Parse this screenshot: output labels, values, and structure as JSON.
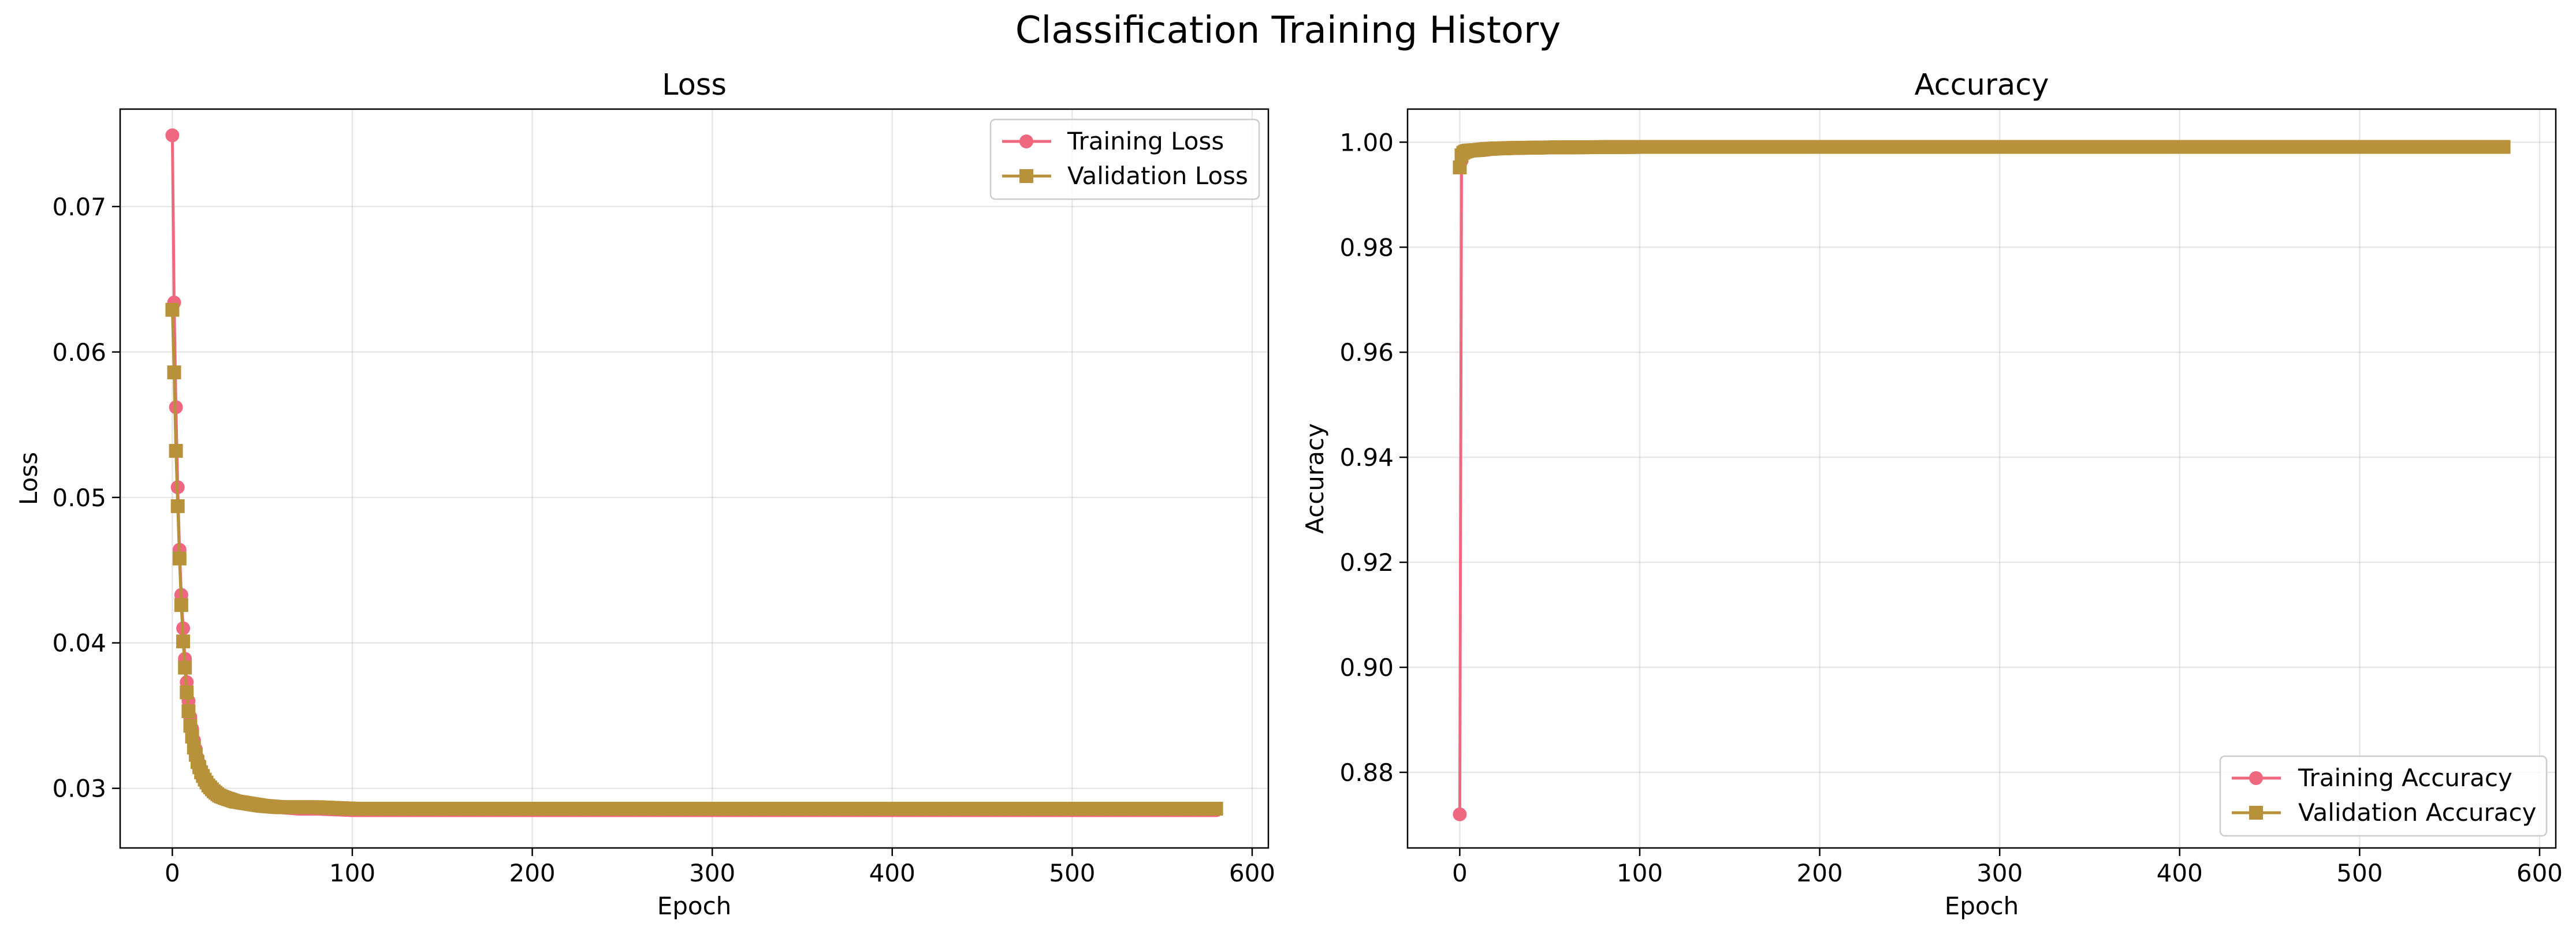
{
  "figure": {
    "title": "Classification Training History",
    "colors": {
      "training": "#f0687f",
      "validation": "#b8923a"
    }
  },
  "chart_data": [
    {
      "type": "line",
      "title": "Loss",
      "xlabel": "Epoch",
      "ylabel": "Loss",
      "xlim": [
        -29,
        609
      ],
      "ylim": [
        0.0259,
        0.0767
      ],
      "xticks": [
        0,
        100,
        200,
        300,
        400,
        500,
        600
      ],
      "yticks": [
        0.03,
        0.04,
        0.05,
        0.06,
        0.07
      ],
      "ytick_labels": [
        "0.03",
        "0.04",
        "0.05",
        "0.06",
        "0.07"
      ],
      "grid": true,
      "legend_position": "upper right",
      "epochs": 580,
      "series": [
        {
          "name": "Training Loss",
          "marker": "circle",
          "x": [
            0,
            1,
            2,
            3,
            4,
            5,
            6,
            7,
            8,
            9,
            10,
            12,
            14,
            16,
            18,
            20,
            23,
            26,
            30,
            35,
            40,
            45,
            50,
            60,
            70,
            80,
            100,
            200,
            300,
            400,
            500,
            580
          ],
          "y": [
            0.0749,
            0.0634,
            0.0562,
            0.0507,
            0.0464,
            0.0433,
            0.041,
            0.0389,
            0.0373,
            0.036,
            0.0349,
            0.0333,
            0.0321,
            0.0313,
            0.0307,
            0.0303,
            0.0299,
            0.0296,
            0.0294,
            0.0292,
            0.029,
            0.0289,
            0.0288,
            0.0287,
            0.0286,
            0.0286,
            0.0285,
            0.0285,
            0.0285,
            0.0285,
            0.0285,
            0.0285
          ]
        },
        {
          "name": "Validation Loss",
          "marker": "square",
          "x": [
            0,
            1,
            2,
            3,
            4,
            5,
            6,
            7,
            8,
            9,
            10,
            12,
            14,
            16,
            18,
            20,
            23,
            26,
            30,
            35,
            40,
            45,
            50,
            60,
            70,
            80,
            100,
            200,
            300,
            400,
            500,
            580
          ],
          "y": [
            0.0629,
            0.0586,
            0.0532,
            0.0494,
            0.0458,
            0.0426,
            0.0401,
            0.0383,
            0.0366,
            0.0353,
            0.0343,
            0.0328,
            0.0318,
            0.0311,
            0.0306,
            0.0302,
            0.0298,
            0.0295,
            0.0293,
            0.0291,
            0.029,
            0.0289,
            0.0288,
            0.0287,
            0.0287,
            0.0287,
            0.0286,
            0.0286,
            0.0286,
            0.0286,
            0.0286,
            0.0286
          ]
        }
      ]
    },
    {
      "type": "line",
      "title": "Accuracy",
      "xlabel": "Epoch",
      "ylabel": "Accuracy",
      "xlim": [
        -29,
        609
      ],
      "ylim": [
        0.8656,
        1.0063
      ],
      "xticks": [
        0,
        100,
        200,
        300,
        400,
        500,
        600
      ],
      "yticks": [
        0.88,
        0.9,
        0.92,
        0.94,
        0.96,
        0.98,
        1.0
      ],
      "ytick_labels": [
        "0.88",
        "0.90",
        "0.92",
        "0.94",
        "0.96",
        "0.98",
        "1.00"
      ],
      "grid": true,
      "legend_position": "lower right",
      "epochs": 580,
      "series": [
        {
          "name": "Training Accuracy",
          "marker": "circle",
          "x": [
            0,
            1,
            2,
            3,
            5,
            10,
            15,
            20,
            30,
            50,
            100,
            200,
            300,
            400,
            500,
            580
          ],
          "y": [
            0.872,
            0.9965,
            0.9975,
            0.998,
            0.9983,
            0.9985,
            0.9987,
            0.9988,
            0.9989,
            0.999,
            0.9991,
            0.9991,
            0.9991,
            0.9991,
            0.9991,
            0.9991
          ]
        },
        {
          "name": "Validation Accuracy",
          "marker": "square",
          "x": [
            0,
            1,
            2,
            3,
            5,
            10,
            15,
            20,
            30,
            50,
            100,
            200,
            300,
            400,
            500,
            580
          ],
          "y": [
            0.9952,
            0.9975,
            0.998,
            0.9982,
            0.9984,
            0.9985,
            0.9987,
            0.9988,
            0.9989,
            0.999,
            0.9991,
            0.9991,
            0.9991,
            0.9991,
            0.9991,
            0.9991
          ]
        }
      ]
    }
  ]
}
